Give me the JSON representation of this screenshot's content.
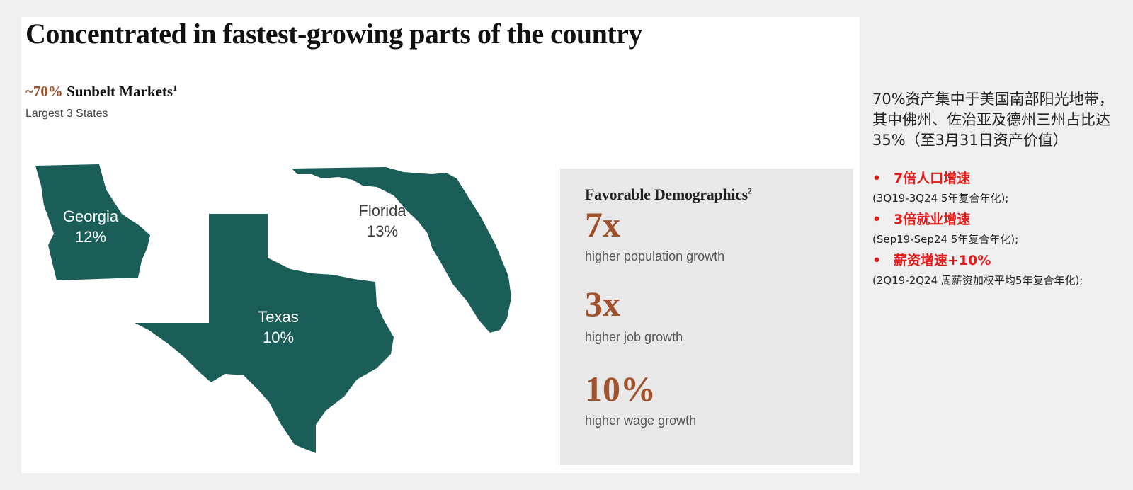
{
  "slide": {
    "title": "Concentrated in fastest-growing parts of the country",
    "subtitle_pct": "~70%",
    "subtitle_text": "Sunbelt Markets",
    "subtitle_sup": "1",
    "subtitle_caption": "Largest 3 States",
    "states": [
      {
        "name": "Georgia",
        "pct": "12%"
      },
      {
        "name": "Florida",
        "pct": "13%"
      },
      {
        "name": "Texas",
        "pct": "10%"
      }
    ],
    "demographics": {
      "title": "Favorable Demographics",
      "title_sup": "2",
      "stats": [
        {
          "value": "7x",
          "label": "higher population growth"
        },
        {
          "value": "3x",
          "label": "higher job growth"
        },
        {
          "value": "10%",
          "label": "higher wage growth"
        }
      ]
    }
  },
  "notes": {
    "paragraph": "70%资产集中于美国南部阳光地带，其中佛州、佐治亚及德州三州占比达35%（至3月31日资产价值）",
    "bullets": [
      {
        "head": "7倍人口增速",
        "note": "(3Q19-3Q24 5年复合年化);"
      },
      {
        "head": "3倍就业增速",
        "note": "(Sep19-Sep24 5年复合年化);"
      },
      {
        "head": "薪资增速+10%",
        "note": "(2Q19-2Q24 周薪资加权平均5年复合年化);"
      }
    ]
  },
  "colors": {
    "map_fill": "#1b5e57",
    "accent": "#a0522d",
    "bullet_red": "#e31b1b",
    "panel_bg": "#e8e8e8"
  }
}
